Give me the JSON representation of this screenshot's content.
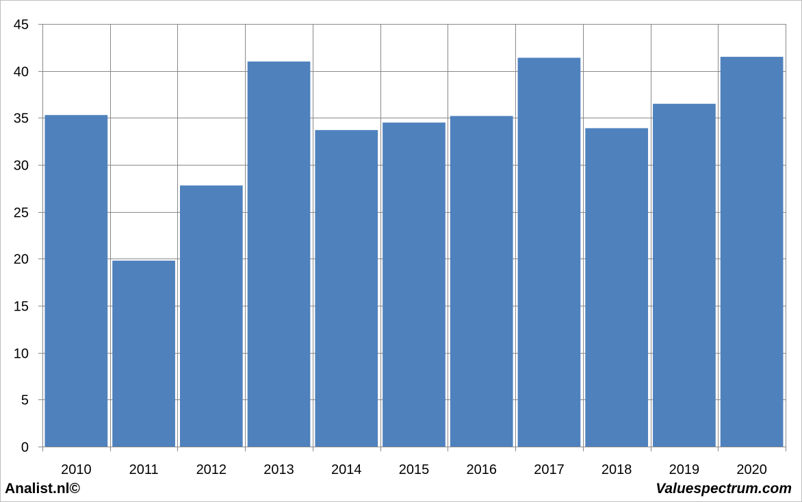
{
  "chart_data": {
    "type": "bar",
    "title": "",
    "xlabel": "",
    "ylabel": "",
    "categories": [
      "2010",
      "2011",
      "2012",
      "2013",
      "2014",
      "2015",
      "2016",
      "2017",
      "2018",
      "2019",
      "2020"
    ],
    "values": [
      35.3,
      19.8,
      27.8,
      41.0,
      33.7,
      34.5,
      35.2,
      41.4,
      33.9,
      36.5,
      41.5
    ],
    "ylim": [
      0,
      45
    ],
    "yticks": [
      "0",
      "5",
      "10",
      "15",
      "20",
      "25",
      "30",
      "35",
      "40",
      "45"
    ],
    "grid": true,
    "legend": "none",
    "bar_color": "#4f81bd",
    "grid_color": "#888888"
  },
  "footer": {
    "left": "Analist.nl©",
    "right": "Valuespectrum.com"
  }
}
